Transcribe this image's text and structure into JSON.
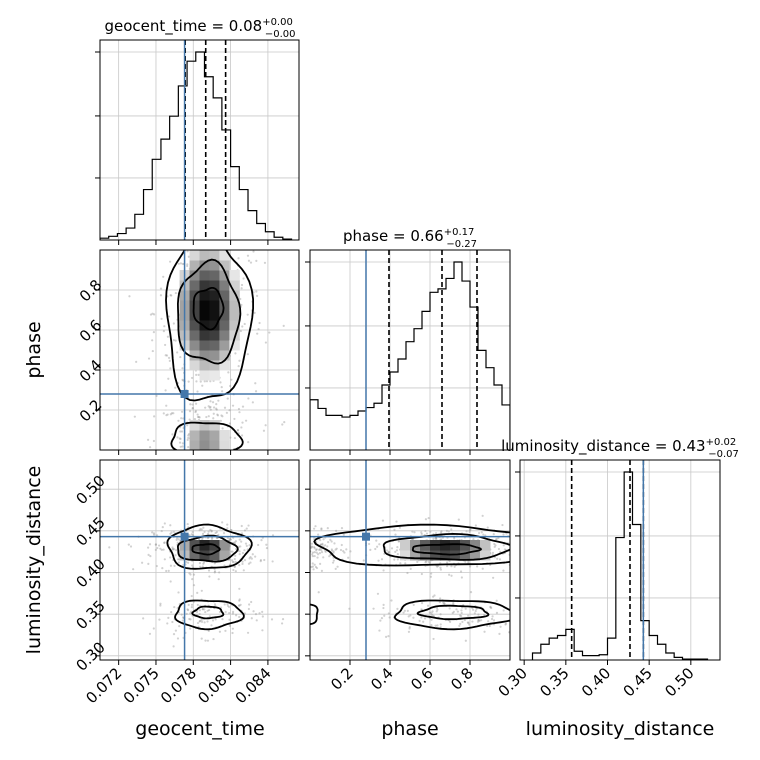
{
  "chart_data": {
    "type": "corner",
    "parameters": [
      "geocent_time",
      "phase",
      "luminosity_distance"
    ],
    "truth": {
      "geocent_time": 0.0773,
      "phase": 0.28,
      "luminosity_distance": 0.443
    },
    "colors": {
      "truth": "#4477aa",
      "contour": "#000000",
      "grid": "#c8c8c8",
      "samples": "#9a9a9a"
    },
    "titles": {
      "geocent_time": {
        "label": "geocent_time",
        "median": "0.08",
        "plus": "+0.00",
        "minus": "−0.00"
      },
      "phase": {
        "label": "phase",
        "median": "0.66",
        "plus": "+0.17",
        "minus": "−0.27"
      },
      "luminosity_distance": {
        "label": "luminosity_distance",
        "median": "0.43",
        "plus": "+0.02",
        "minus": "−0.07"
      }
    },
    "axes": {
      "geocent_time": {
        "lim": [
          0.0705,
          0.0865
        ],
        "ticks": [
          0.072,
          0.075,
          0.078,
          0.081,
          0.084
        ],
        "tick_labels": [
          "0.072",
          "0.075",
          "0.078",
          "0.081",
          "0.084"
        ]
      },
      "phase": {
        "lim": [
          0.0,
          1.0
        ],
        "ticks": [
          0.2,
          0.4,
          0.6,
          0.8
        ],
        "tick_labels": [
          "0.2",
          "0.4",
          "0.6",
          "0.8"
        ]
      },
      "luminosity_distance": {
        "lim": [
          0.295,
          0.535
        ],
        "ticks": [
          0.3,
          0.35,
          0.4,
          0.45,
          0.5
        ],
        "tick_labels": [
          "0.30",
          "0.35",
          "0.40",
          "0.45",
          "0.50"
        ]
      }
    },
    "histograms": {
      "geocent_time": {
        "quantiles": [
          0.07735,
          0.079,
          0.0806
        ],
        "bin_edges": [
          0.0705,
          0.0712,
          0.0719,
          0.0726,
          0.0733,
          0.074,
          0.0747,
          0.0754,
          0.0761,
          0.0768,
          0.0775,
          0.0782,
          0.0789,
          0.0796,
          0.0803,
          0.081,
          0.0817,
          0.0824,
          0.0831,
          0.0838,
          0.0845,
          0.0852,
          0.0859
        ],
        "counts": [
          2,
          4,
          7,
          13,
          28,
          55,
          88,
          110,
          135,
          168,
          195,
          205,
          178,
          155,
          120,
          80,
          55,
          32,
          18,
          9,
          3,
          1
        ]
      },
      "phase": {
        "quantiles": [
          0.395,
          0.66,
          0.835
        ],
        "bin_edges": [
          0.0,
          0.04,
          0.08,
          0.12,
          0.16,
          0.2,
          0.24,
          0.28,
          0.32,
          0.36,
          0.4,
          0.44,
          0.48,
          0.52,
          0.56,
          0.6,
          0.64,
          0.68,
          0.72,
          0.76,
          0.8,
          0.84,
          0.88,
          0.92,
          0.96,
          1.0
        ],
        "counts": [
          58,
          48,
          40,
          40,
          38,
          40,
          45,
          49,
          54,
          75,
          90,
          105,
          125,
          140,
          160,
          182,
          186,
          198,
          217,
          195,
          165,
          115,
          95,
          75,
          52
        ]
      },
      "luminosity_distance": {
        "quantiles": [
          0.357,
          0.427,
          0.443
        ],
        "bin_edges": [
          0.31,
          0.32,
          0.33,
          0.34,
          0.35,
          0.36,
          0.37,
          0.38,
          0.39,
          0.4,
          0.41,
          0.42,
          0.43,
          0.44,
          0.45,
          0.46,
          0.47,
          0.48,
          0.49,
          0.5,
          0.51,
          0.52
        ],
        "counts": [
          8,
          18,
          25,
          28,
          35,
          10,
          5,
          5,
          6,
          25,
          140,
          215,
          155,
          45,
          28,
          18,
          8,
          3,
          1,
          1,
          1
        ]
      }
    },
    "pairs": [
      {
        "x": "geocent_time",
        "y": "phase",
        "blobs": [
          {
            "cx": 0.0792,
            "cy": 0.7,
            "sx": 0.00175,
            "sy": 0.23,
            "w": 1.0
          },
          {
            "cx": 0.079,
            "cy": 0.04,
            "sx": 0.0016,
            "sy": 0.1,
            "w": 0.6
          }
        ],
        "contours": [
          {
            "level": "outer",
            "cx": 0.0792,
            "cy": 0.66,
            "rx": 0.0034,
            "ry": 0.42,
            "closed": false,
            "range": [
              0.0,
              1.0
            ]
          },
          {
            "level": "middle",
            "cx": 0.0792,
            "cy": 0.68,
            "rx": 0.0025,
            "ry": 0.25
          },
          {
            "level": "inner",
            "cx": 0.0792,
            "cy": 0.71,
            "rx": 0.0012,
            "ry": 0.1
          },
          {
            "level": "lower",
            "cx": 0.079,
            "cy": 0.05,
            "rx": 0.0028,
            "ry": 0.09
          }
        ]
      },
      {
        "x": "geocent_time",
        "y": "luminosity_distance",
        "blobs": [
          {
            "cx": 0.079,
            "cy": 0.428,
            "sx": 0.00165,
            "sy": 0.011,
            "w": 1.0
          },
          {
            "cx": 0.0792,
            "cy": 0.348,
            "sx": 0.00175,
            "sy": 0.01,
            "w": 0.35
          }
        ],
        "contours": [
          {
            "level": "outer",
            "cx": 0.0792,
            "cy": 0.43,
            "rx": 0.0033,
            "ry": 0.026
          },
          {
            "level": "middle",
            "cx": 0.0791,
            "cy": 0.428,
            "rx": 0.0024,
            "ry": 0.015
          },
          {
            "level": "inner",
            "cx": 0.079,
            "cy": 0.428,
            "rx": 0.0011,
            "ry": 0.006
          },
          {
            "level": "lower-outer",
            "cx": 0.0792,
            "cy": 0.35,
            "rx": 0.0027,
            "ry": 0.017
          },
          {
            "level": "lower-inner",
            "cx": 0.0792,
            "cy": 0.352,
            "rx": 0.0012,
            "ry": 0.007
          }
        ]
      },
      {
        "x": "phase",
        "y": "luminosity_distance",
        "blobs": [
          {
            "cx": 0.68,
            "cy": 0.428,
            "sx": 0.17,
            "sy": 0.011,
            "w": 1.0
          },
          {
            "cx": 0.72,
            "cy": 0.35,
            "sx": 0.16,
            "sy": 0.01,
            "w": 0.35
          },
          {
            "cx": 0.02,
            "cy": 0.43,
            "sx": 0.05,
            "sy": 0.012,
            "w": 0.3
          }
        ],
        "contours": [
          {
            "level": "outer",
            "cx": 0.62,
            "cy": 0.432,
            "rx": 0.6,
            "ry": 0.024,
            "closed": false,
            "xrange": [
              0.0,
              1.0
            ]
          },
          {
            "level": "middle",
            "cx": 0.68,
            "cy": 0.43,
            "rx": 0.32,
            "ry": 0.015
          },
          {
            "level": "inner",
            "cx": 0.68,
            "cy": 0.428,
            "rx": 0.17,
            "ry": 0.006
          },
          {
            "level": "lower-outer",
            "cx": 0.72,
            "cy": 0.35,
            "rx": 0.3,
            "ry": 0.017
          },
          {
            "level": "lower-inner",
            "cx": 0.72,
            "cy": 0.352,
            "rx": 0.17,
            "ry": 0.008
          },
          {
            "level": "left-edge",
            "cx": -0.02,
            "cy": 0.35,
            "rx": 0.06,
            "ry": 0.013
          }
        ]
      }
    ],
    "grid": true
  }
}
